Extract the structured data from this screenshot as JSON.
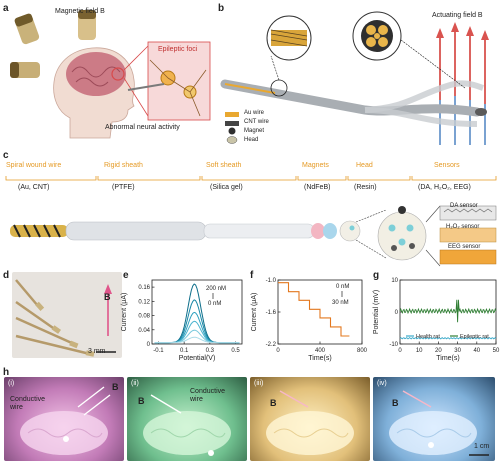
{
  "panels": {
    "a": {
      "label": "a",
      "magnetic_field": "Magnetic field B",
      "epileptic_foci": "Epileptic foci",
      "abnormal_activity": "Abnormal neural activity"
    },
    "b": {
      "label": "b",
      "actuating_field": "Actuating field B",
      "legend": [
        {
          "label": "Au wire",
          "color": "#e9a830"
        },
        {
          "label": "CNT wire",
          "color": "#444444"
        },
        {
          "label": "Magnet",
          "color": "#2f2f2f"
        },
        {
          "label": "Head",
          "color": "#c9c4a8"
        }
      ]
    },
    "c": {
      "label": "c",
      "sections": [
        {
          "title": "Spiral wound wire",
          "material": "(Au, CNT)"
        },
        {
          "title": "Rigid sheath",
          "material": "(PTFE)"
        },
        {
          "title": "Soft sheath",
          "material": "(Silica gel)"
        },
        {
          "title": "Magnets",
          "material": "(NdFeB)"
        },
        {
          "title": "Head",
          "material": "(Resin)"
        },
        {
          "title": "Sensors",
          "material": "(DA, H₂O₂, EEG)"
        }
      ],
      "sensors": [
        "DA sensor",
        "H₂O₂ sensor",
        "EEG sensor"
      ]
    },
    "d": {
      "label": "d",
      "b_label": "B",
      "scale": "3 mm"
    },
    "e": {
      "label": "e",
      "legend_top": "200 nM",
      "legend_bottom": "0 nM",
      "xlabel": "Potential(V)",
      "ylabel": "Current (μA)"
    },
    "f": {
      "label": "f",
      "legend_top": "0 nM",
      "legend_bottom": "30 nM",
      "xlabel": "Time(s)",
      "ylabel": "Current (μA)"
    },
    "g": {
      "label": "g",
      "xlabel": "Time(s)",
      "ylabel": "Potential (mV)",
      "legend": [
        "Health rat",
        "Epileptic rat"
      ]
    },
    "h": {
      "label": "h",
      "photos": [
        {
          "roman": "(i)",
          "b": "B",
          "note": "Conductive wire"
        },
        {
          "roman": "(ii)",
          "b": "B",
          "note": "Conductive wire"
        },
        {
          "roman": "(iii)",
          "b": "B",
          "note": ""
        },
        {
          "roman": "(iv)",
          "b": "B",
          "note": ""
        }
      ],
      "scale": "1 cm"
    }
  },
  "chart_data": [
    {
      "panel": "e",
      "type": "line",
      "xlabel": "Potential(V)",
      "ylabel": "Current (μA)",
      "xlim": [
        -0.15,
        0.55
      ],
      "ylim": [
        0,
        0.18
      ],
      "xticks": [
        -0.1,
        0.1,
        0.3,
        0.5
      ],
      "yticks": [
        0,
        0.04,
        0.08,
        0.12,
        0.16
      ],
      "peak_x": 0.18,
      "series": [
        {
          "peak": 0.165
        },
        {
          "peak": 0.12
        },
        {
          "peak": 0.085
        },
        {
          "peak": 0.06
        },
        {
          "peak": 0.035
        },
        {
          "peak": 0.015
        }
      ]
    },
    {
      "panel": "f",
      "type": "line",
      "xlabel": "Time(s)",
      "ylabel": "Current (μA)",
      "xlim": [
        0,
        800
      ],
      "ylim": [
        -2.2,
        -1.0
      ],
      "xticks": [
        0,
        400,
        800
      ],
      "yticks": [
        -1.0,
        -1.6,
        -2.2
      ],
      "steps": [
        {
          "x": [
            0,
            100
          ],
          "y": -1.05
        },
        {
          "x": [
            100,
            200
          ],
          "y": -1.22
        },
        {
          "x": [
            200,
            300
          ],
          "y": -1.38
        },
        {
          "x": [
            300,
            400
          ],
          "y": -1.55
        },
        {
          "x": [
            400,
            500
          ],
          "y": -1.71
        },
        {
          "x": [
            500,
            600
          ],
          "y": -1.88
        },
        {
          "x": [
            600,
            680
          ],
          "y": -2.05
        }
      ]
    },
    {
      "panel": "g",
      "type": "line",
      "xlabel": "Time(s)",
      "ylabel": "Potential (mV)",
      "xlim": [
        0,
        50
      ],
      "ylim": [
        -10,
        10
      ],
      "xticks": [
        0,
        10,
        20,
        30,
        40,
        50
      ],
      "yticks": [
        -10,
        0,
        10
      ],
      "series": [
        {
          "name": "Health rat",
          "color": "#3aa9c9",
          "level": -0.2
        },
        {
          "name": "Epileptic rat",
          "color": "#2e7d32",
          "level": 0.3,
          "spike_x": 30
        }
      ]
    }
  ]
}
